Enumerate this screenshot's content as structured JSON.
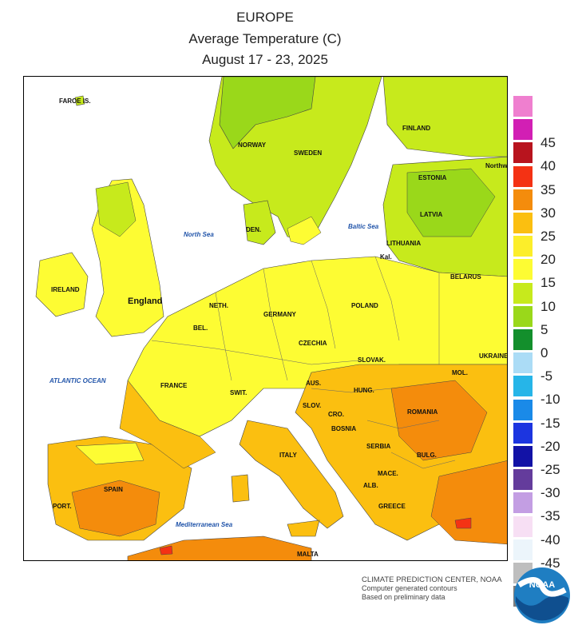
{
  "header": {
    "title": "EUROPE",
    "subtitle": "Average Temperature (C)",
    "period": "August 17 - 23, 2025"
  },
  "legend": {
    "bins": [
      {
        "label": "",
        "color": "#ef7fcf"
      },
      {
        "label": "45",
        "color": "#d21fb4"
      },
      {
        "label": "40",
        "color": "#b8141e"
      },
      {
        "label": "35",
        "color": "#f43214"
      },
      {
        "label": "30",
        "color": "#f48c0c"
      },
      {
        "label": "25",
        "color": "#fbbf10"
      },
      {
        "label": "20",
        "color": "#fcee2a"
      },
      {
        "label": "15",
        "color": "#fdfc33"
      },
      {
        "label": "10",
        "color": "#c7ea1c"
      },
      {
        "label": "5",
        "color": "#9ad81a"
      },
      {
        "label": "0",
        "color": "#138f2c"
      },
      {
        "label": "-5",
        "color": "#abdcf6"
      },
      {
        "label": "-10",
        "color": "#26b5e8"
      },
      {
        "label": "-15",
        "color": "#1a8ae8"
      },
      {
        "label": "-20",
        "color": "#1c35e0"
      },
      {
        "label": "-25",
        "color": "#1212a6"
      },
      {
        "label": "-30",
        "color": "#643c9c"
      },
      {
        "label": "-35",
        "color": "#c39ee3"
      },
      {
        "label": "-40",
        "color": "#f7dff4"
      },
      {
        "label": "-45",
        "color": "#ecf5fb"
      },
      {
        "label": "",
        "color": "#bebebe"
      },
      {
        "label": "",
        "color": "#7c7c7c"
      }
    ]
  },
  "map": {
    "country_labels": [
      "FAROE IS.",
      "NORWAY",
      "SWEDEN",
      "FINLAND",
      "ESTONIA",
      "LATVIA",
      "LITHUANIA",
      "Kal.",
      "BELARUS",
      "DEN.",
      "IRELAND",
      "England",
      "NETH.",
      "BEL.",
      "GERMANY",
      "POLAND",
      "CZECHIA",
      "SLOVAK.",
      "UKRAINE",
      "MOL.",
      "AUS.",
      "HUNG.",
      "FRANCE",
      "SWIT.",
      "SLOV.",
      "CRO.",
      "ROMANIA",
      "BOSNIA",
      "SERBIA",
      "BULG.",
      "MACE.",
      "ALB.",
      "ITALY",
      "GREECE",
      "SPAIN",
      "PORT.",
      "MALTA",
      "Northwest District"
    ],
    "sea_labels": [
      "North Sea",
      "Baltic Sea",
      "ATLANTIC OCEAN",
      "Mediterranean Sea"
    ],
    "colors": {
      "sea": "#ffffff",
      "cool_green": "#9ad81a",
      "light_green": "#c7ea1c",
      "yellow": "#fdfc33",
      "yellow_orange": "#fcee2a",
      "orange": "#fbbf10",
      "deep_orange": "#f48c0c",
      "red": "#f43214"
    }
  },
  "credits": {
    "line1": "CLIMATE PREDICTION CENTER, NOAA",
    "line2": "Computer generated contours",
    "line3": "Based on preliminary data",
    "logo_text": "NOAA"
  }
}
